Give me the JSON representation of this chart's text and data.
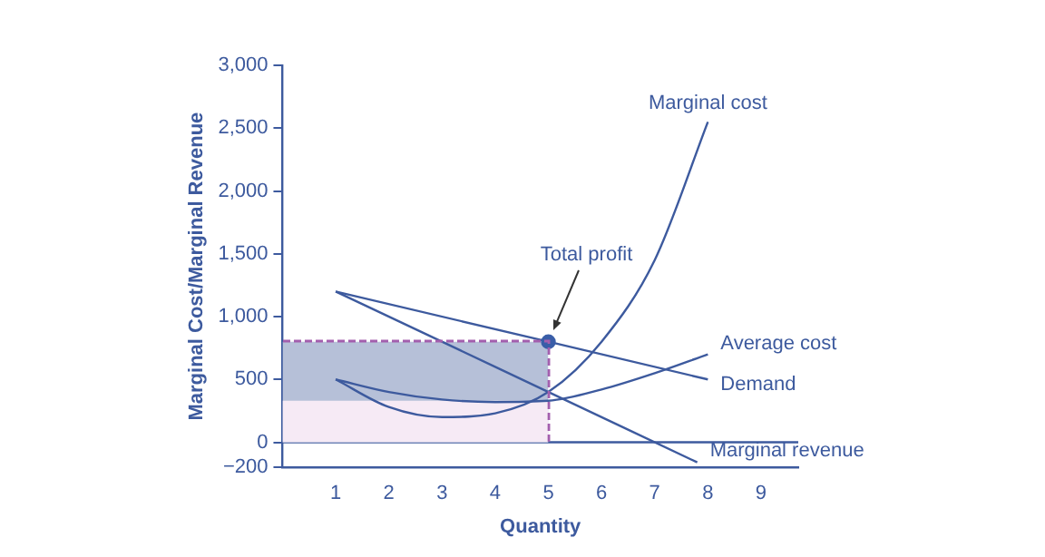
{
  "chart_data": {
    "type": "line",
    "xlabel": "Quantity",
    "ylabel": "Marginal Cost/Marginal Revenue",
    "xlim": [
      0,
      9.7
    ],
    "xticks": [
      1,
      2,
      3,
      4,
      5,
      6,
      7,
      8,
      9
    ],
    "ylim": [
      -200,
      3000
    ],
    "yticks": [
      {
        "value": -200,
        "label": "−200"
      },
      {
        "value": 0,
        "label": "0"
      },
      {
        "value": 500,
        "label": "500"
      },
      {
        "value": 1000,
        "label": "1,000"
      },
      {
        "value": 1500,
        "label": "1,500"
      },
      {
        "value": 2000,
        "label": "2,000"
      },
      {
        "value": 2500,
        "label": "2,500"
      },
      {
        "value": 3000,
        "label": "3,000"
      }
    ],
    "grid": false,
    "legend": false,
    "marker": "none",
    "series": [
      {
        "type": "scatter",
        "color": "#3a5ea8",
        "x": [
          5
        ],
        "values": [
          800
        ],
        "marker": "circle"
      },
      {
        "name": "Marginal cost",
        "color": "#3d5a9e",
        "x": [
          1,
          2,
          3,
          4,
          5,
          6,
          7,
          8
        ],
        "values": [
          500,
          280,
          200,
          230,
          400,
          800,
          1450,
          2550
        ]
      },
      {
        "name": "Average cost",
        "color": "#3d5a9e",
        "x": [
          1,
          2,
          3,
          4,
          5,
          6,
          7,
          8
        ],
        "values": [
          500,
          400,
          340,
          320,
          330,
          420,
          550,
          700
        ]
      },
      {
        "name": "Demand",
        "color": "#3d5a9e",
        "x": [
          1,
          5,
          8
        ],
        "values": [
          1200,
          800,
          500
        ]
      },
      {
        "name": "Marginal revenue",
        "color": "#3d5a9e",
        "x": [
          1,
          5,
          7.8
        ],
        "values": [
          1200,
          400,
          -160
        ]
      },
      {
        "type": "area",
        "color": "#f6eaf5",
        "x": [
          0,
          5
        ],
        "values": [
          330,
          330
        ]
      },
      {
        "type": "area",
        "color": "#b6c0d8",
        "x": [
          0,
          5
        ],
        "values": [
          800,
          800
        ]
      }
    ],
    "ref_lines": [
      {
        "axis": "y",
        "value": 0,
        "color": "#3d5a9e"
      }
    ],
    "annotations": [
      "Total profit"
    ]
  }
}
